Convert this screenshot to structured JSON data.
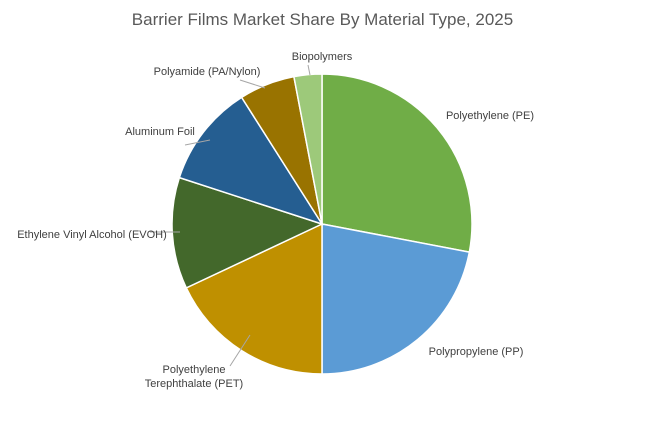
{
  "chart_data": {
    "type": "pie",
    "title": "Barrier Films Market Share By Material Type, 2025",
    "categories": [
      "Polyethylene (PE)",
      "Polypropylene (PP)",
      "Polyethylene Terephthalate (PET)",
      "Ethylene Vinyl Alcohol (EVOH)",
      "Aluminum Foil",
      "Polyamide (PA/Nylon)",
      "Biopolymers"
    ],
    "values": [
      28,
      22,
      18,
      12,
      11,
      6,
      3
    ],
    "colors": [
      "#70ad47",
      "#5b9bd5",
      "#bf9000",
      "#43682b",
      "#255e91",
      "#997300",
      "#9dc97a"
    ]
  }
}
